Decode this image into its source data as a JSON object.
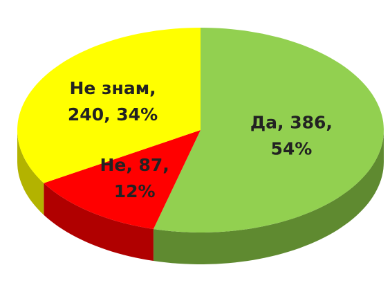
{
  "chart_data": {
    "type": "pie3d",
    "categories": [
      "Да",
      "Не",
      "Не знам"
    ],
    "values": [
      386,
      87,
      240
    ],
    "value_labels": [
      [
        "Да, 386,",
        "54%"
      ],
      [
        "Не, 87,",
        "12%"
      ],
      [
        "Не знам,",
        "240, 34%"
      ]
    ],
    "colors": [
      "#92d050",
      "#ff0000",
      "#ffff00"
    ],
    "side_colors": [
      "#5f8a30",
      "#b00000",
      "#b3b300"
    ]
  }
}
